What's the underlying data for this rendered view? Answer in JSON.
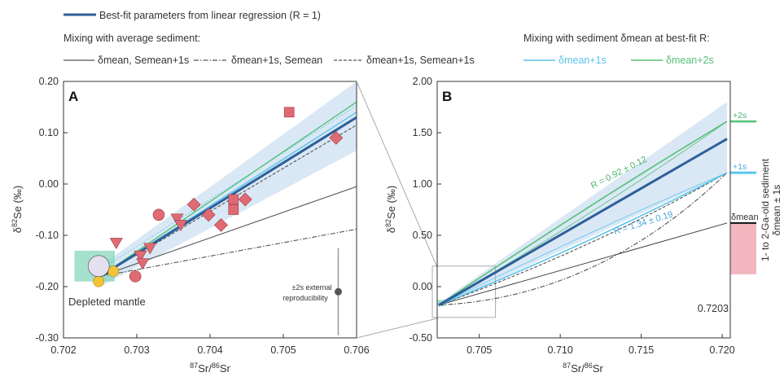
{
  "legend": {
    "bestfit": "Best-fit parameters from linear regression (R = 1)",
    "avg_heading": "Mixing with average sediment:",
    "avg_solid": "δmean, Semean+1s",
    "avg_dashdot": "δmean+1s, Semean",
    "avg_dashed": "δmean+1s, Semean+1s",
    "bestR_heading": "Mixing with sediment δmean at best-fit R:",
    "bestR_1s": "δmean+1s",
    "bestR_2s": "δmean+2s"
  },
  "colors": {
    "bestfit": "#2e5f9a",
    "band": "#d6e5f4",
    "light_blue": "#5bc4ec",
    "green": "#55c077",
    "mantle_box": "#7fd4b6",
    "sediment_box": "#f2b7be",
    "marker_red": "#e06a73",
    "marker_yellow": "#f5c436",
    "marker_lavender": "#e3e0ef",
    "gray": "#777777"
  },
  "chart_data": [
    {
      "panel": "A",
      "type": "scatter",
      "xlabel": "87Sr/86Sr",
      "ylabel": "δ82Se (‰)",
      "xlim": [
        0.702,
        0.706
      ],
      "ylim": [
        -0.3,
        0.2
      ],
      "x_ticks": [
        "0.702",
        "0.703",
        "0.704",
        "0.705",
        "0.706"
      ],
      "y_ticks": [
        "0.20",
        "0.10",
        "0.00",
        "-0.10",
        "-0.20",
        "-0.30"
      ],
      "annotations": {
        "mantle_label": "Depleted mantle",
        "repro_label_1": "±2s external",
        "repro_label_2": "reproducibility"
      },
      "depleted_mantle_box": {
        "x": [
          0.70215,
          0.7027
        ],
        "y": [
          -0.19,
          -0.13
        ]
      },
      "reproducibility": {
        "x": 0.70575,
        "y": -0.21,
        "err": 0.085
      },
      "lines": {
        "bestfit": [
          [
            0.7025,
            -0.18
          ],
          [
            0.706,
            0.13
          ]
        ],
        "solid_gray": [
          [
            0.7025,
            -0.18
          ],
          [
            0.706,
            -0.005
          ]
        ],
        "dashdot_gray": [
          [
            0.7025,
            -0.18
          ],
          [
            0.706,
            -0.088
          ]
        ],
        "dashed_gray": [
          [
            0.7025,
            -0.18
          ],
          [
            0.706,
            0.115
          ]
        ],
        "green": [
          [
            0.7025,
            -0.18
          ],
          [
            0.706,
            0.16
          ]
        ],
        "light_blue": [
          [
            0.7025,
            -0.18
          ],
          [
            0.706,
            0.14
          ]
        ],
        "band_upper": [
          [
            0.7025,
            -0.16
          ],
          [
            0.706,
            0.2
          ]
        ],
        "band_lower": [
          [
            0.7025,
            -0.2
          ],
          [
            0.706,
            0.065
          ]
        ]
      },
      "series": [
        {
          "marker": "square",
          "color": "red",
          "points": [
            [
              0.70508,
              0.14
            ],
            [
              0.70432,
              -0.03
            ],
            [
              0.70432,
              -0.05
            ]
          ]
        },
        {
          "marker": "diamond",
          "color": "red",
          "points": [
            [
              0.70572,
              0.09
            ],
            [
              0.70378,
              -0.04
            ],
            [
              0.70398,
              -0.06
            ],
            [
              0.70415,
              -0.08
            ],
            [
              0.70448,
              -0.03
            ]
          ]
        },
        {
          "marker": "triangle-down",
          "color": "red",
          "points": [
            [
              0.70272,
              -0.115
            ],
            [
              0.70318,
              -0.125
            ],
            [
              0.70305,
              -0.14
            ],
            [
              0.70308,
              -0.155
            ],
            [
              0.70355,
              -0.068
            ],
            [
              0.7036,
              -0.08
            ]
          ]
        },
        {
          "marker": "circle",
          "color": "red",
          "points": [
            [
              0.7033,
              -0.06
            ],
            [
              0.70298,
              -0.18
            ]
          ]
        },
        {
          "marker": "circle",
          "color": "yellow",
          "points": [
            [
              0.70248,
              -0.19
            ],
            [
              0.70268,
              -0.17
            ]
          ]
        },
        {
          "marker": "circle-large",
          "color": "lavender",
          "points": [
            [
              0.70248,
              -0.16
            ]
          ]
        }
      ]
    },
    {
      "panel": "B",
      "type": "line",
      "xlabel": "87Sr/86Sr",
      "ylabel": "δ82Se (‰)",
      "xlim": [
        0.7024,
        0.7205
      ],
      "ylim": [
        -0.5,
        2.0
      ],
      "x_ticks": [
        "0.705",
        "0.710",
        "0.715",
        "0.720"
      ],
      "y_ticks": [
        "2.00",
        "1.50",
        "1.00",
        "0.50",
        "0.00",
        "-0.50"
      ],
      "annotations": {
        "r_green": "R = 0.92 ± 0.12",
        "r_blue": "R = 1.34 ± 0.19",
        "plus2s": "+2s",
        "plus1s": "+1s",
        "mean": "δmean",
        "x_end_label": "0.7203",
        "sediment_label_1": "1- to 2-Ga-old sediment",
        "sediment_label_2": "δmean ± 1s"
      },
      "sediment": {
        "mean": 0.62,
        "plus1s": 1.11,
        "plus2s": 1.61,
        "minus1s": 0.12
      },
      "zoom_box": {
        "x": [
          0.7021,
          0.706
        ],
        "y": [
          -0.3,
          0.2
        ]
      },
      "lines": {
        "bestfit": [
          [
            0.7025,
            -0.18
          ],
          [
            0.7203,
            1.44
          ]
        ],
        "band_upper": [
          [
            0.7025,
            -0.16
          ],
          [
            0.7203,
            1.8
          ]
        ],
        "band_lower": [
          [
            0.7025,
            -0.2
          ],
          [
            0.7203,
            1.1
          ]
        ],
        "solid_gray": [
          [
            0.7025,
            -0.18
          ],
          [
            0.7203,
            0.62
          ]
        ],
        "green_bestR": [
          [
            0.7025,
            -0.18
          ],
          [
            0.7203,
            1.61
          ]
        ],
        "blue_bestR": [
          [
            0.7025,
            -0.18
          ],
          [
            0.7203,
            1.11
          ]
        ]
      }
    }
  ]
}
